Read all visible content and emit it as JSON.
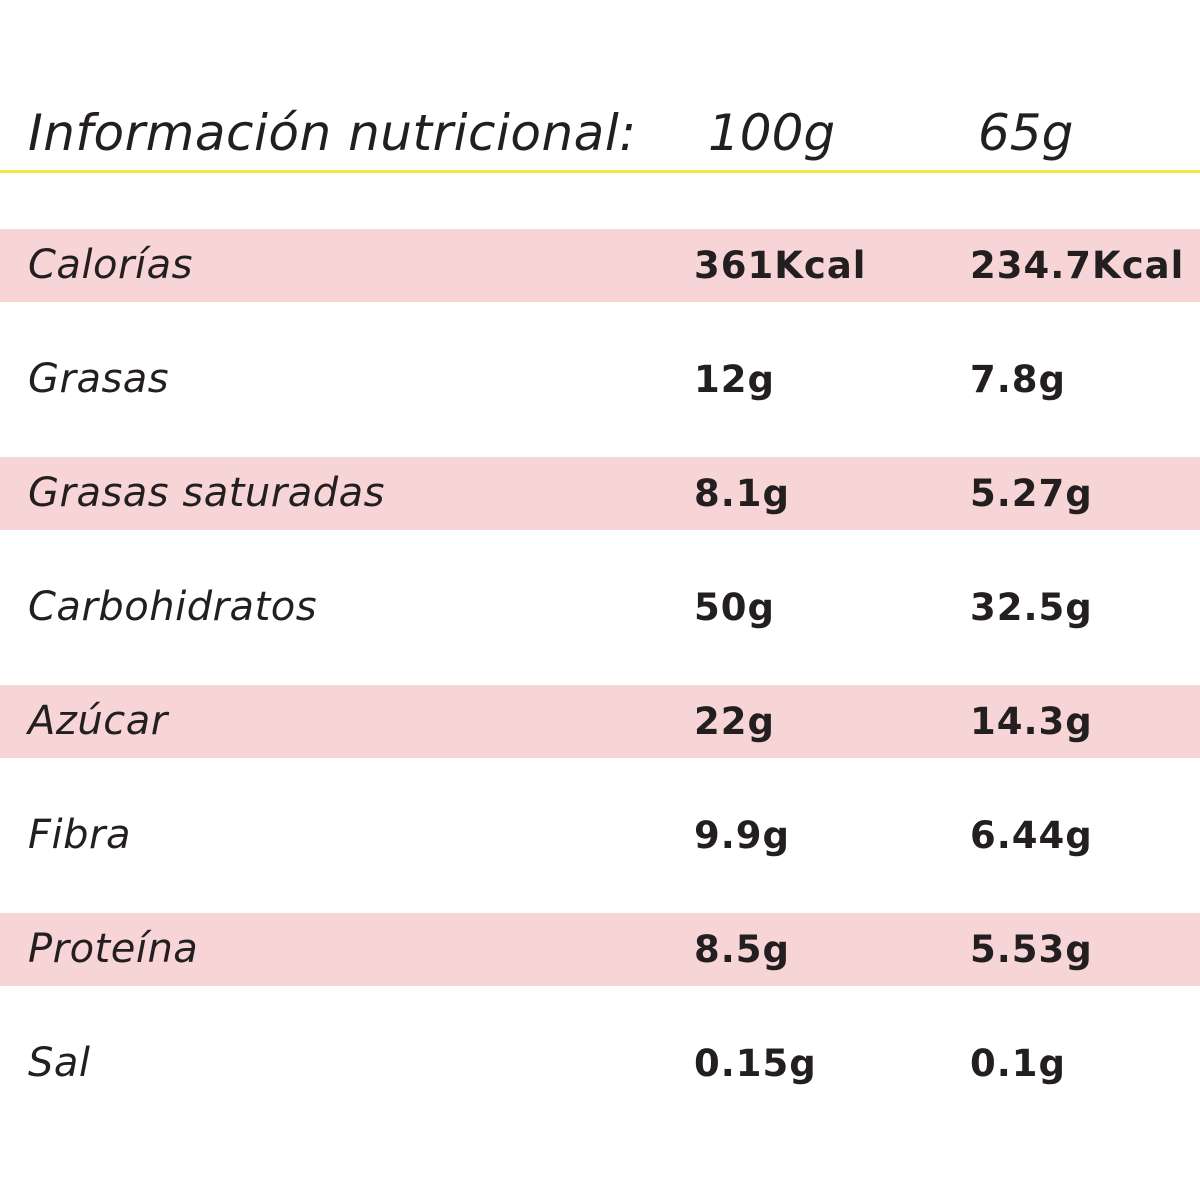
{
  "header": {
    "title": "Información nutricional:",
    "col_1": "100g",
    "col_2": "65g"
  },
  "colors": {
    "row_shade": "#f7d5d6",
    "header_rule": "#f2e84b",
    "text": "#231f20"
  },
  "rows": [
    {
      "name": "Calorías",
      "per_100g": "361Kcal",
      "per_65g": "234.7Kcal"
    },
    {
      "name": "Grasas",
      "per_100g": "12g",
      "per_65g": "7.8g"
    },
    {
      "name": "Grasas saturadas",
      "per_100g": "8.1g",
      "per_65g": "5.27g"
    },
    {
      "name": "Carbohidratos",
      "per_100g": "50g",
      "per_65g": "32.5g"
    },
    {
      "name": "Azúcar",
      "per_100g": "22g",
      "per_65g": "14.3g"
    },
    {
      "name": "Fibra",
      "per_100g": "9.9g",
      "per_65g": "6.44g"
    },
    {
      "name": "Proteína",
      "per_100g": "8.5g",
      "per_65g": "5.53g"
    },
    {
      "name": "Sal",
      "per_100g": "0.15g",
      "per_65g": "0.1g"
    }
  ]
}
